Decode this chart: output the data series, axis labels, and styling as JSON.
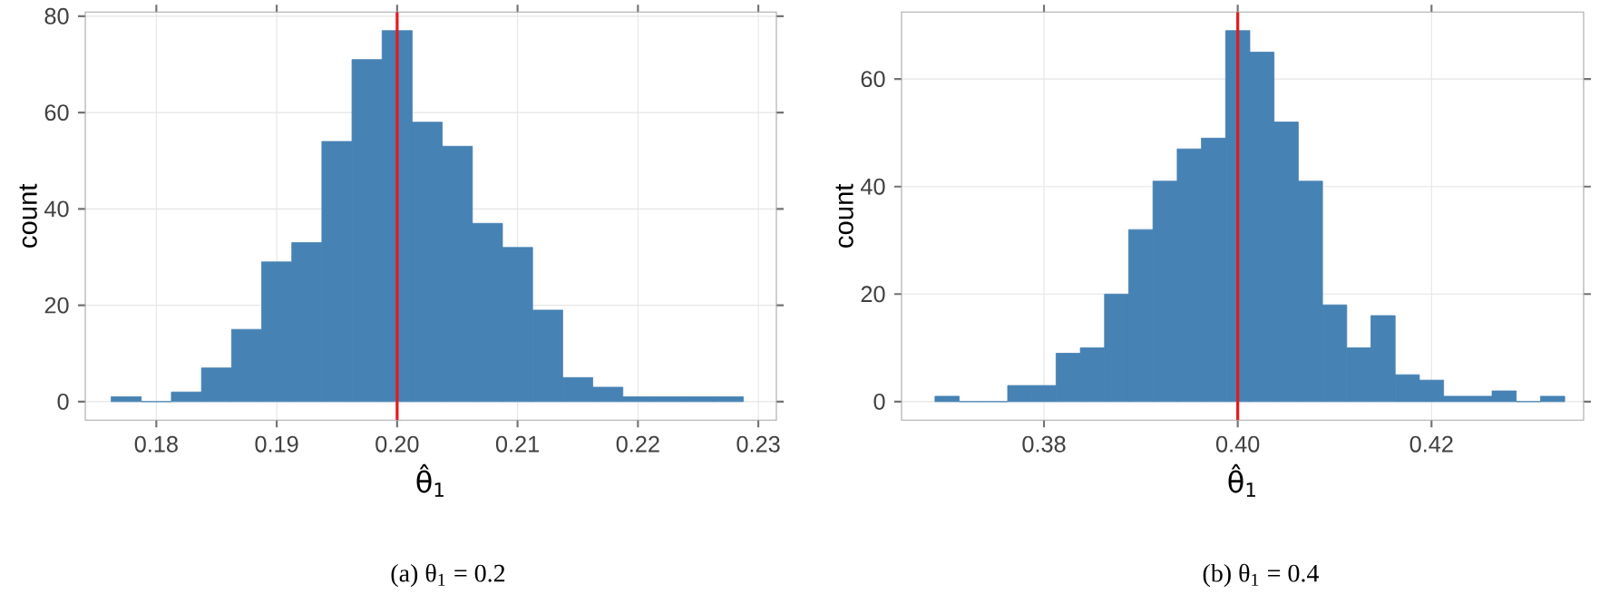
{
  "chart_data": [
    {
      "type": "histogram",
      "bins": [
        0.17625,
        0.17875,
        0.18125,
        0.18375,
        0.18625,
        0.18875,
        0.19125,
        0.19375,
        0.19625,
        0.19875,
        0.20125,
        0.20375,
        0.20625,
        0.20875,
        0.21125,
        0.21375,
        0.21625,
        0.21875,
        0.22125,
        0.22375,
        0.22625,
        0.22875
      ],
      "values": [
        1,
        0,
        2,
        7,
        15,
        29,
        33,
        54,
        71,
        77,
        58,
        53,
        37,
        32,
        19,
        5,
        3,
        1,
        1,
        1,
        1
      ],
      "color": "#4682b4",
      "xlabel": "θ̂$_{1}$",
      "ylabel": "count",
      "xlim": [
        0.1741,
        0.2315
      ],
      "ylim": [
        -3.85,
        80.85
      ],
      "xticks": [
        0.18,
        0.19,
        {
          "value": 0.2,
          "label": "0.20"
        },
        0.21,
        0.22,
        0.23
      ],
      "yticks": [
        0,
        20,
        40,
        60,
        80
      ],
      "grid": true,
      "ref_lines": [
        {
          "axis": "x",
          "value": 0.2,
          "color": "#e41a1c"
        }
      ],
      "annotations": [
        "(a) θ$_{1}$ = 0.2"
      ]
    },
    {
      "type": "histogram",
      "bins": [
        0.36875,
        0.37125,
        0.37375,
        0.37625,
        0.37875,
        0.38125,
        0.38375,
        0.38625,
        0.38875,
        0.39125,
        0.39375,
        0.39625,
        0.39875,
        0.40125,
        0.40375,
        0.40625,
        0.40875,
        0.41125,
        0.41375,
        0.41625,
        0.41875,
        0.42125,
        0.42375,
        0.42625,
        0.42875,
        0.43125,
        0.43375
      ],
      "values": [
        1,
        0,
        0,
        3,
        3,
        9,
        10,
        20,
        32,
        41,
        47,
        49,
        69,
        65,
        52,
        41,
        18,
        10,
        16,
        5,
        4,
        1,
        1,
        2,
        0,
        1
      ],
      "color": "#4682b4",
      "xlabel": "θ̂$_{1}$",
      "ylabel": "count",
      "xlim": [
        0.3653,
        0.4357
      ],
      "ylim": [
        -3.45,
        72.45
      ],
      "xticks": [
        0.38,
        {
          "value": 0.4,
          "label": "0.40"
        },
        0.42
      ],
      "yticks": [
        0,
        20,
        40,
        60
      ],
      "grid": true,
      "ref_lines": [
        {
          "axis": "x",
          "value": 0.4,
          "color": "#e41a1c"
        }
      ],
      "annotations": [
        "(b) θ$_{1}$ = 0.4"
      ]
    }
  ]
}
